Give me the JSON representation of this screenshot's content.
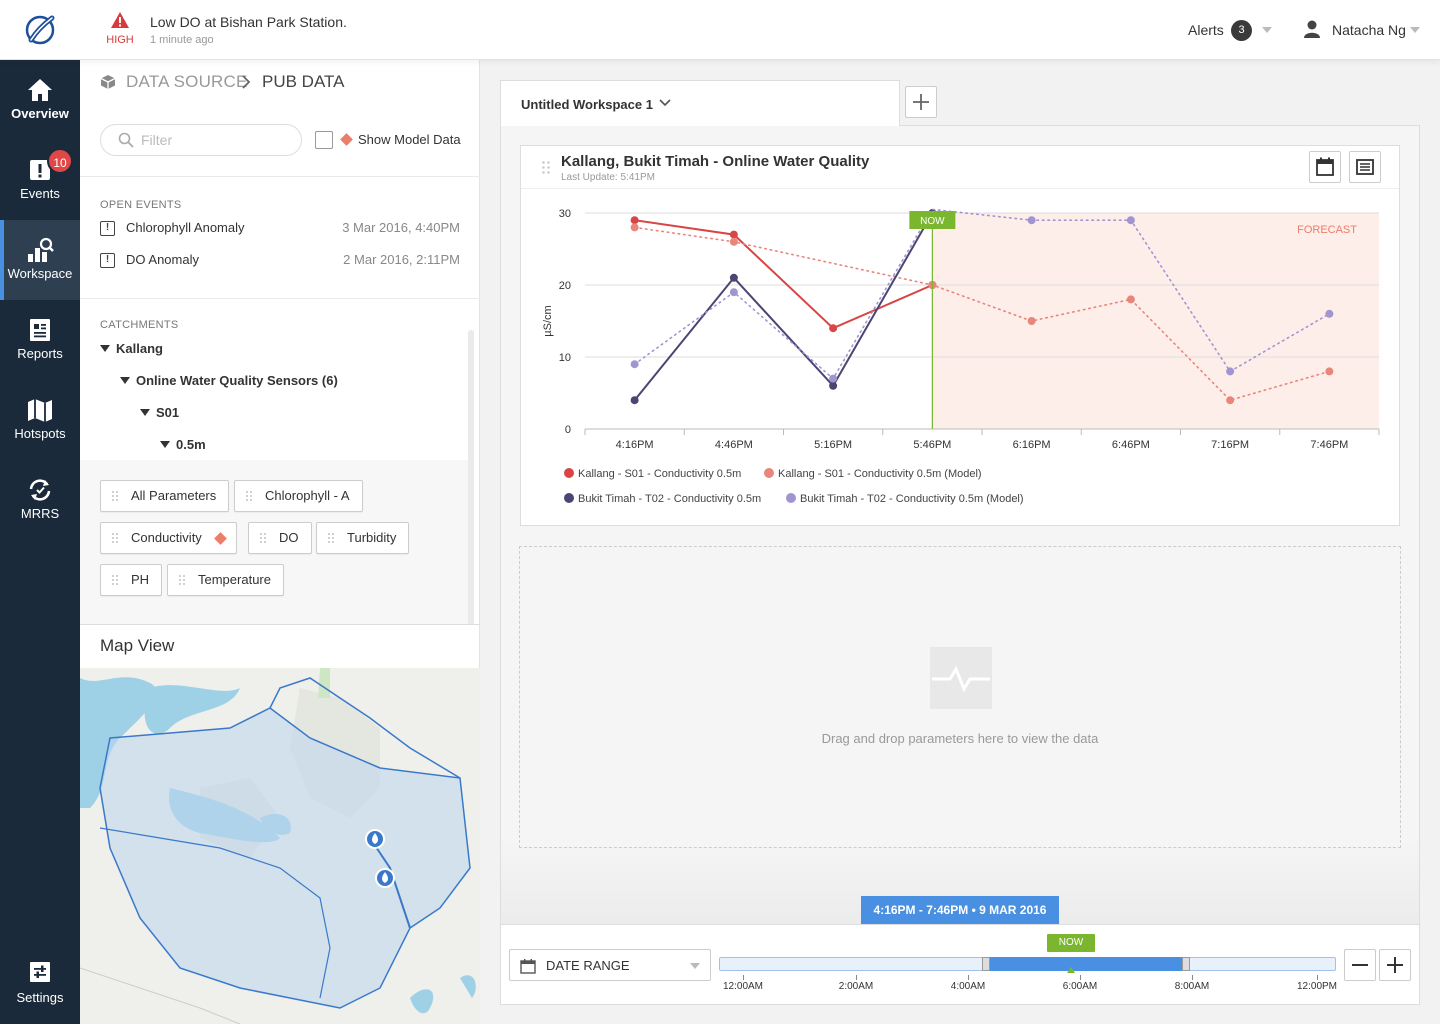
{
  "topbar": {
    "alert_level": "HIGH",
    "alert_message": "Low DO at Bishan Park Station.",
    "alert_time": "1 minute ago",
    "alerts_label": "Alerts",
    "alerts_count": "3",
    "user_name": "Natacha Ng"
  },
  "nav": {
    "overview": "Overview",
    "events": "Events",
    "events_badge": "10",
    "workspace": "Workspace",
    "reports": "Reports",
    "hotspots": "Hotspots",
    "mrrs": "MRRS",
    "settings": "Settings"
  },
  "panel": {
    "breadcrumb_root": "DATA SOURCE",
    "breadcrumb_current": "PUB DATA",
    "filter_placeholder": "Filter",
    "show_model_label": "Show Model Data",
    "open_events_title": "OPEN EVENTS",
    "events": [
      {
        "name": "Chlorophyll Anomaly",
        "date": "3 Mar 2016, 4:40PM"
      },
      {
        "name": "DO Anomaly",
        "date": "2 Mar 2016, 2:11PM"
      }
    ],
    "catchments_title": "CATCHMENTS",
    "tree": [
      "Kallang",
      "Online Water Quality Sensors (6)",
      "S01",
      "0.5m"
    ],
    "params": [
      "All Parameters",
      "Chlorophyll - A",
      "Conductivity",
      "DO",
      "Turbidity",
      "PH",
      "Temperature"
    ],
    "map_title": "Map View"
  },
  "workspace": {
    "tab_label": "Untitled Workspace 1",
    "card_title": "Kallang, Bukit Timah - Online Water Quality",
    "card_update": "Last Update: 5:41PM",
    "drop_text": "Drag and drop parameters here to view the data",
    "range_badge": "4:16PM - 7:46PM • 9 MAR 2016",
    "date_range_label": "DATE RANGE",
    "timeline_now": "NOW",
    "timeline_labels": [
      "12:00AM",
      "2:00AM",
      "4:00AM",
      "6:00AM",
      "8:00AM",
      "12:00PM"
    ]
  },
  "colors": {
    "sidebar": "#1b2a3a",
    "accent": "#4a90e2",
    "now": "#7ab72f",
    "kallang": "#d94545",
    "kallang_model": "#e8867c",
    "bukit": "#4a4673",
    "bukit_model": "#a194cf"
  },
  "chart_data": {
    "type": "line",
    "categories": [
      "4:16PM",
      "4:46PM",
      "5:16PM",
      "5:46PM",
      "6:16PM",
      "6:46PM",
      "7:16PM",
      "7:46PM"
    ],
    "ylabel": "µS/cm",
    "ylim": [
      0,
      30
    ],
    "yticks": [
      0,
      10,
      20,
      30
    ],
    "now_label": "NOW",
    "now_index": 3,
    "forecast_label": "FORECAST",
    "series": [
      {
        "name": "Kallang - S01 - Conductivity 0.5m",
        "style": "solid",
        "color": "#d94545",
        "values": [
          29,
          27,
          14,
          20,
          null,
          null,
          null,
          null
        ]
      },
      {
        "name": "Kallang - S01 - Conductivity 0.5m (Model)",
        "style": "dotted",
        "color": "#e8867c",
        "values": [
          28,
          26,
          null,
          20,
          15,
          18,
          4,
          8
        ]
      },
      {
        "name": "Bukit Timah - T02 - Conductivity 0.5m",
        "style": "solid",
        "color": "#4a4673",
        "values": [
          4,
          21,
          6,
          30,
          null,
          null,
          null,
          null
        ]
      },
      {
        "name": "Bukit Timah - T02 - Conductivity 0.5m (Model)",
        "style": "dotted",
        "color": "#a194cf",
        "values": [
          9,
          19,
          7,
          31,
          29,
          29,
          8,
          16
        ]
      }
    ]
  }
}
